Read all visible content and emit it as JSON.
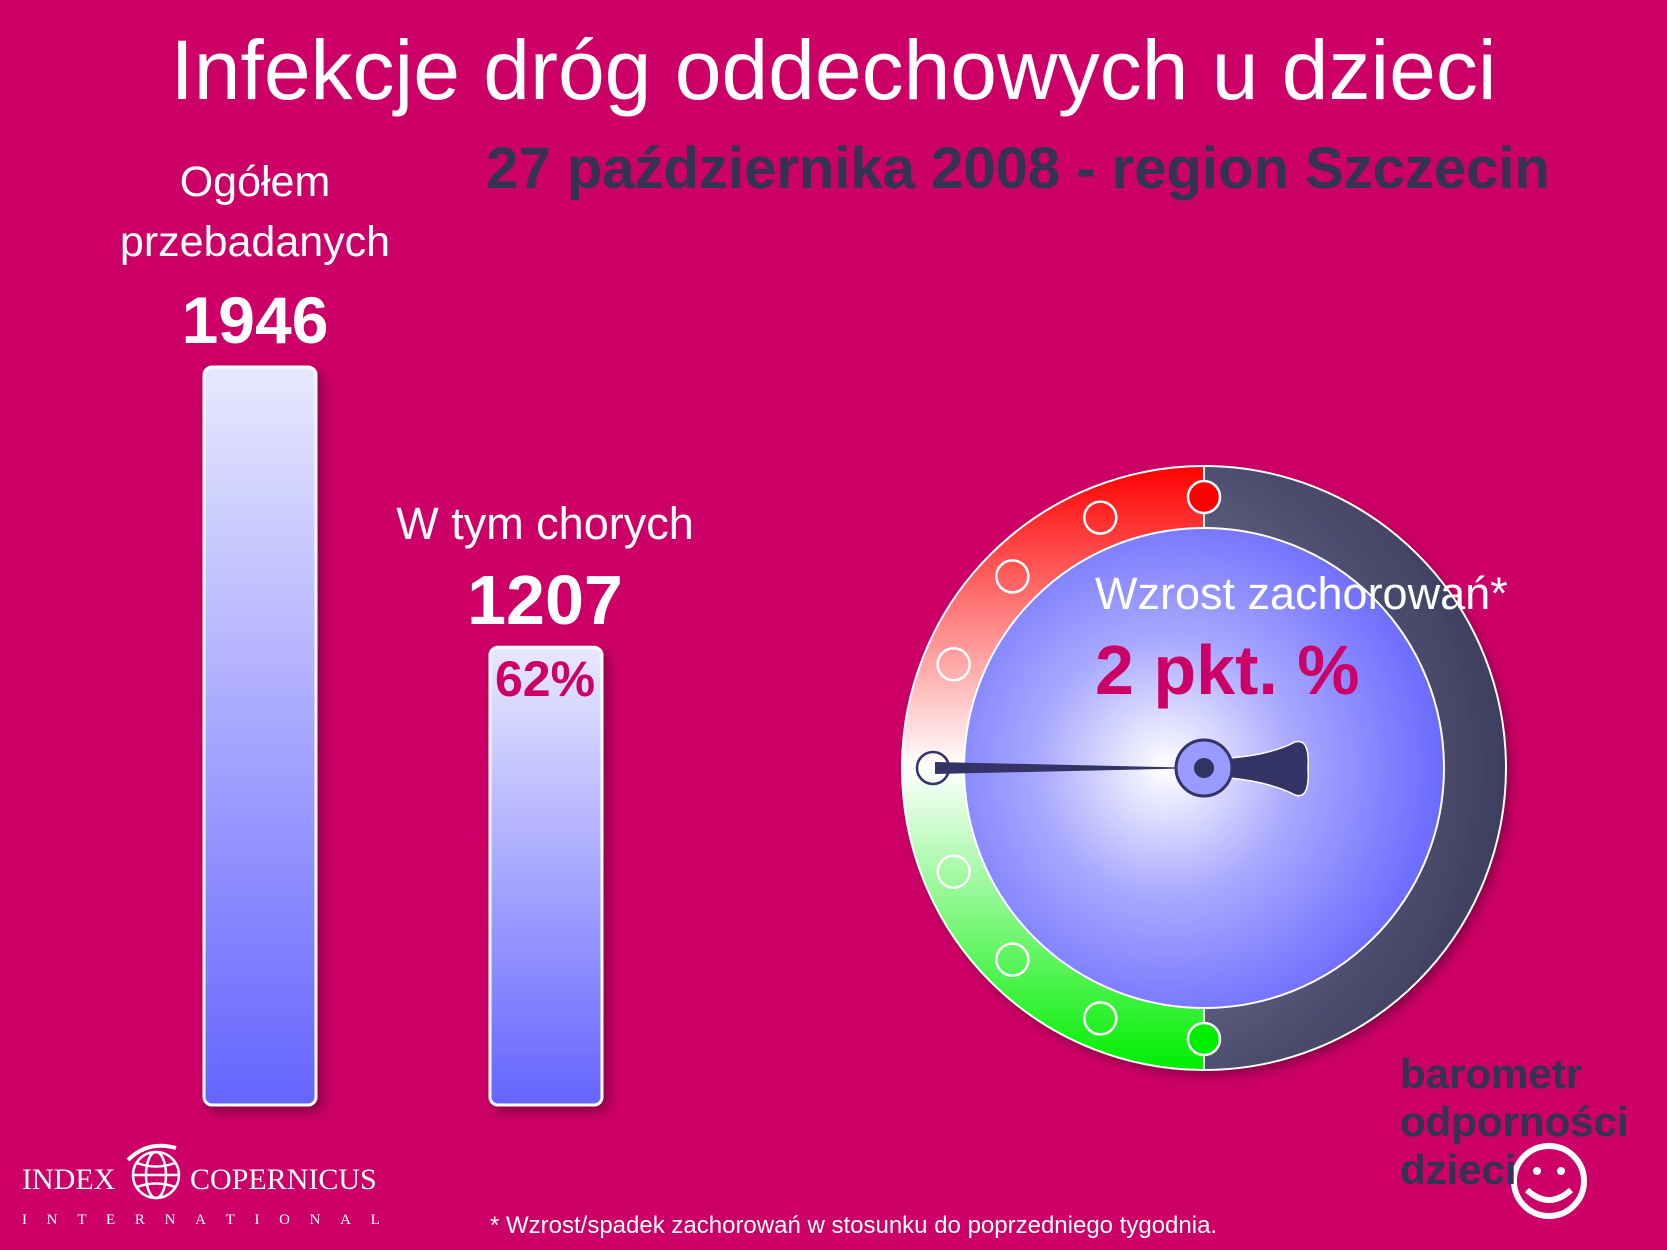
{
  "title": "Infekcje dróg oddechowych u dzieci",
  "subtitle": "27 października 2008 - region Szczecin",
  "chart_data": {
    "type": "bar",
    "categories": [
      "Ogółem przebadanych",
      "W tym chorych"
    ],
    "values": [
      1946,
      1207
    ],
    "percent_of_total": [
      null,
      62
    ],
    "value_labels": [
      "1946",
      "1207"
    ],
    "percent_label": "62%",
    "bar_colors": [
      "#e6e6ff",
      "#6666ff"
    ]
  },
  "bars": {
    "total_line1": "Ogółem",
    "total_line2": "przebadanych",
    "total_value": "1946",
    "sick_label": "W tym chorych",
    "sick_value": "1207",
    "sick_percent": "62%"
  },
  "gauge": {
    "label": "Wzrost zachorowań*",
    "value_text": "2 pkt. %",
    "value": 2,
    "colors": {
      "increase": "#ff0000",
      "neutral": "#ffffff",
      "decrease": "#00ee00",
      "dial": "#7777ff",
      "rim": "#333355"
    }
  },
  "brand": {
    "line1": "barometr",
    "line2": "odporności",
    "line3": "dzieci"
  },
  "logo": {
    "left": "INDEX",
    "right": "COPERNICUS",
    "sub": "INTERNATIONAL"
  },
  "footnote": "* Wzrost/spadek zachorowań w stosunku do poprzedniego tygodnia."
}
